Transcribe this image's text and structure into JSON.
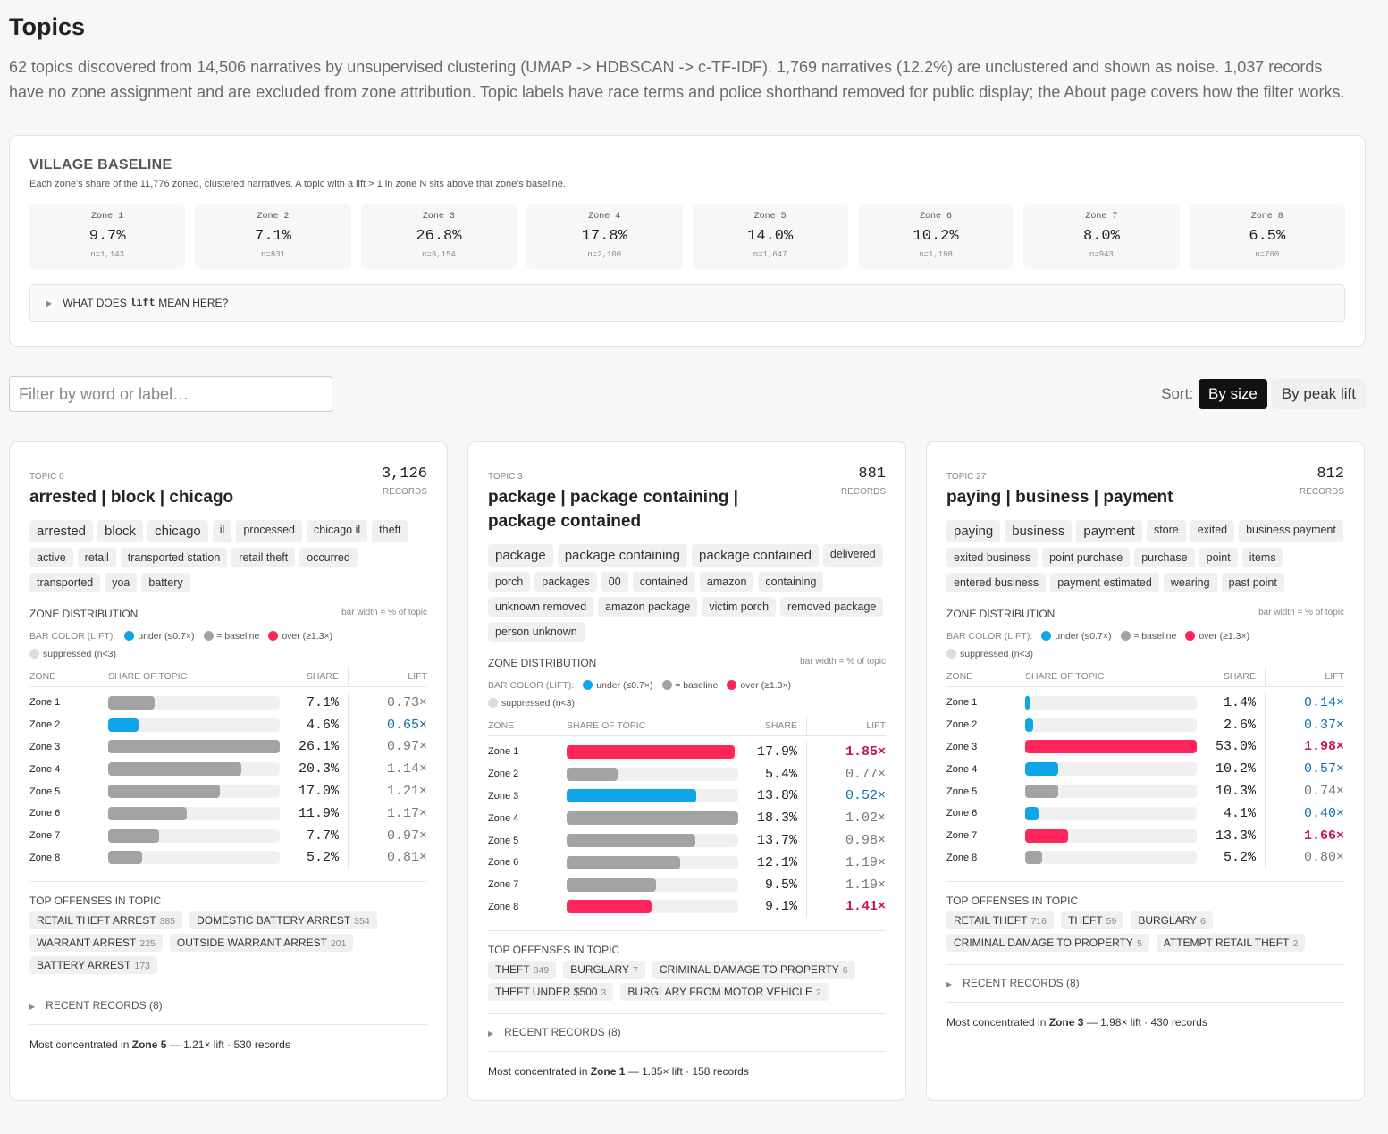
{
  "header": {
    "title": "Topics",
    "description": "62 topics discovered from 14,506 narratives by unsupervised clustering (UMAP -> HDBSCAN -> c-TF-IDF). 1,769 narratives (12.2%) are unclustered and shown as noise. 1,037 records have no zone assignment and are excluded from zone attribution. Topic labels have race terms and police shorthand removed for public display; the About page covers how the filter works."
  },
  "zones": [
    "Zone 1",
    "Zone 2",
    "Zone 3",
    "Zone 4",
    "Zone 5",
    "Zone 6",
    "Zone 7",
    "Zone 8"
  ],
  "baseline": {
    "title": "VILLAGE BASELINE",
    "subtitle": "Each zone's share of the 11,776 zoned, clustered narratives. A topic with a lift > 1 in zone N sits above that zone's baseline.",
    "shares": [
      "9.7%",
      "7.1%",
      "26.8%",
      "17.8%",
      "14.0%",
      "10.2%",
      "8.0%",
      "6.5%"
    ],
    "counts": [
      "n=1,143",
      "n=831",
      "n=3,154",
      "n=2,100",
      "n=1,647",
      "n=1,198",
      "n=943",
      "n=760"
    ],
    "details": {
      "pre": "WHAT DOES",
      "code": "lift",
      "post": "MEAN HERE?"
    }
  },
  "controls": {
    "filter_placeholder": "Filter by word or label…",
    "sort_label": "Sort:",
    "sort_options": [
      "By size",
      "By peak lift"
    ]
  },
  "card_labels": {
    "records": "RECORDS",
    "zone_dist": "ZONE DISTRIBUTION",
    "bar_note": "bar width = % of topic",
    "legend_title": "BAR COLOR (LIFT):",
    "legend": [
      {
        "label": "under (≤0.7×)",
        "color": "#0ea5e9"
      },
      {
        "label": "≈ baseline",
        "color": "#a3a3a3"
      },
      {
        "label": "over (≥1.3×)",
        "color": "#ff2459"
      },
      {
        "label": "suppressed (n<3)",
        "color": "#dddddd"
      }
    ],
    "columns": [
      "ZONE",
      "SHARE OF TOPIC",
      "SHARE",
      "LIFT"
    ],
    "offenses_title": "TOP OFFENSES IN TOPIC",
    "recent": "RECENT RECORDS (8)"
  },
  "topics": [
    {
      "id": "TOPIC 0",
      "count": "3,126",
      "title": "arrested | block | chicago",
      "tags": [
        "arrested",
        "block",
        "chicago",
        "il",
        "processed",
        "chicago il",
        "theft",
        "active",
        "retail",
        "transported station",
        "retail theft",
        "occurred",
        "transported",
        "yoa",
        "battery"
      ],
      "shares": [
        7.1,
        4.6,
        26.1,
        20.3,
        17,
        11.9,
        7.7,
        5.2
      ],
      "share_labels": [
        "7.1%",
        "4.6%",
        "26.1%",
        "20.3%",
        "17.0%",
        "11.9%",
        "7.7%",
        "5.2%"
      ],
      "lift_labels": [
        "0.73×",
        "0.65×",
        "0.97×",
        "1.14×",
        "1.21×",
        "1.17×",
        "0.97×",
        "0.81×"
      ],
      "colors": [
        "#a3a3a3",
        "#0ea5e9",
        "#a3a3a3",
        "#a3a3a3",
        "#a3a3a3",
        "#a3a3a3",
        "#a3a3a3",
        "#a3a3a3"
      ],
      "offenses": [
        {
          "name": "RETAIL THEFT ARREST",
          "count": "385"
        },
        {
          "name": "DOMESTIC BATTERY ARREST",
          "count": "354"
        },
        {
          "name": "WARRANT ARREST",
          "count": "225"
        },
        {
          "name": "OUTSIDE WARRANT ARREST",
          "count": "201"
        },
        {
          "name": "BATTERY ARREST",
          "count": "173"
        }
      ],
      "footer": {
        "pre": "Most concentrated in",
        "zone": "Zone 5",
        "post": "— 1.21× lift · 530 records"
      }
    },
    {
      "id": "TOPIC 3",
      "count": "881",
      "title": "package | package containing | package contained",
      "tags": [
        "package",
        "package containing",
        "package contained",
        "delivered",
        "porch",
        "packages",
        "00",
        "contained",
        "amazon",
        "containing",
        "unknown removed",
        "amazon package",
        "victim porch",
        "removed package",
        "person unknown"
      ],
      "shares": [
        17.9,
        5.4,
        13.8,
        18.3,
        13.7,
        12.1,
        9.5,
        9.1
      ],
      "share_labels": [
        "17.9%",
        "5.4%",
        "13.8%",
        "18.3%",
        "13.7%",
        "12.1%",
        "9.5%",
        "9.1%"
      ],
      "lift_labels": [
        "1.85×",
        "0.77×",
        "0.52×",
        "1.02×",
        "0.98×",
        "1.19×",
        "1.19×",
        "1.41×"
      ],
      "colors": [
        "#ff2459",
        "#a3a3a3",
        "#0ea5e9",
        "#a3a3a3",
        "#a3a3a3",
        "#a3a3a3",
        "#a3a3a3",
        "#ff2459"
      ],
      "offenses": [
        {
          "name": "THEFT",
          "count": "849"
        },
        {
          "name": "BURGLARY",
          "count": "7"
        },
        {
          "name": "CRIMINAL DAMAGE TO PROPERTY",
          "count": "6"
        },
        {
          "name": "THEFT UNDER $500",
          "count": "3"
        },
        {
          "name": "BURGLARY FROM MOTOR VEHICLE",
          "count": "2"
        }
      ],
      "footer": {
        "pre": "Most concentrated in",
        "zone": "Zone 1",
        "post": "— 1.85× lift · 158 records"
      }
    },
    {
      "id": "TOPIC 27",
      "count": "812",
      "title": "paying | business | payment",
      "tags": [
        "paying",
        "business",
        "payment",
        "store",
        "exited",
        "business payment",
        "exited business",
        "point purchase",
        "purchase",
        "point",
        "items",
        "entered business",
        "payment estimated",
        "wearing",
        "past point"
      ],
      "shares": [
        1.4,
        2.6,
        53,
        10.2,
        10.3,
        4.1,
        13.3,
        5.2
      ],
      "share_labels": [
        "1.4%",
        "2.6%",
        "53.0%",
        "10.2%",
        "10.3%",
        "4.1%",
        "13.3%",
        "5.2%"
      ],
      "lift_labels": [
        "0.14×",
        "0.37×",
        "1.98×",
        "0.57×",
        "0.74×",
        "0.40×",
        "1.66×",
        "0.80×"
      ],
      "colors": [
        "#0ea5e9",
        "#0ea5e9",
        "#ff2459",
        "#0ea5e9",
        "#a3a3a3",
        "#0ea5e9",
        "#ff2459",
        "#a3a3a3"
      ],
      "offenses": [
        {
          "name": "RETAIL THEFT",
          "count": "716"
        },
        {
          "name": "THEFT",
          "count": "59"
        },
        {
          "name": "BURGLARY",
          "count": "6"
        },
        {
          "name": "CRIMINAL DAMAGE TO PROPERTY",
          "count": "5"
        },
        {
          "name": "ATTEMPT RETAIL THEFT",
          "count": "2"
        }
      ],
      "footer": {
        "pre": "Most concentrated in",
        "zone": "Zone 3",
        "post": "— 1.98× lift · 430 records"
      }
    }
  ]
}
